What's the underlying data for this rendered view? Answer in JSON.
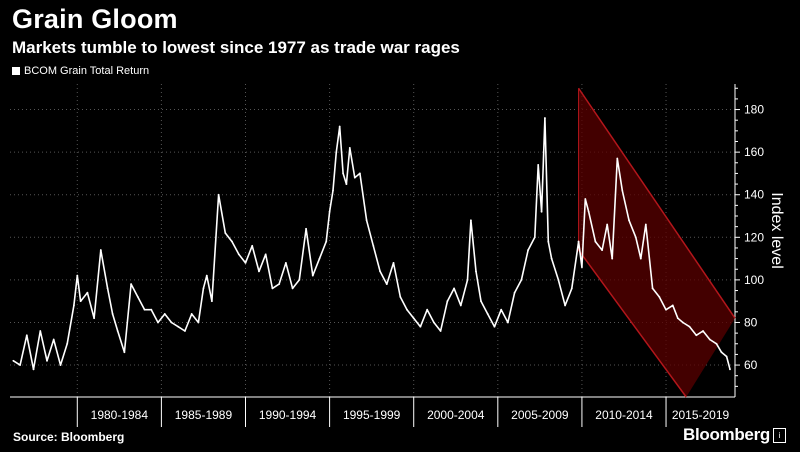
{
  "header": {
    "title": "Grain Gloom",
    "subtitle": "Markets tumble to lowest since 1977 as trade war rages"
  },
  "footer": {
    "source": "Source: Bloomberg",
    "brand": "Bloomberg",
    "brand_mark": "i"
  },
  "colors": {
    "background": "#000000",
    "series": "#ffffff",
    "channel_fill": "#5a0000",
    "channel_edge": "#b3161b",
    "grid": "#555555"
  },
  "chart_data": {
    "type": "line",
    "title": "Grain Gloom",
    "subtitle": "Markets tumble to lowest since 1977 as trade war rages",
    "ylabel": "Index level",
    "xlabel": "",
    "ylim": [
      45,
      192
    ],
    "xlim": [
      1976.8,
      2019.9
    ],
    "yticks": [
      60,
      80,
      100,
      120,
      140,
      160,
      180
    ],
    "x_categories": [
      "1980-1984",
      "1985-1989",
      "1990-1994",
      "1995-1999",
      "2000-2004",
      "2005-2009",
      "2010-2014",
      "2015-2019"
    ],
    "category_dividers": [
      1980.8,
      1985.8,
      1990.8,
      1995.8,
      2000.8,
      2005.8,
      2010.8,
      2015.8
    ],
    "grid": true,
    "legend_position": "top-left",
    "series": [
      {
        "name": "BCOM Grain Total Return",
        "x": [
          1977.0,
          1977.4,
          1977.8,
          1978.2,
          1978.6,
          1979.0,
          1979.4,
          1979.8,
          1980.2,
          1980.6,
          1980.8,
          1981.0,
          1981.4,
          1981.8,
          1982.2,
          1982.6,
          1982.9,
          1983.2,
          1983.6,
          1984.0,
          1984.4,
          1984.8,
          1985.2,
          1985.6,
          1986.0,
          1986.4,
          1986.8,
          1987.2,
          1987.6,
          1988.0,
          1988.3,
          1988.5,
          1988.8,
          1989.2,
          1989.6,
          1990.0,
          1990.4,
          1990.8,
          1991.2,
          1991.6,
          1992.0,
          1992.4,
          1992.8,
          1993.2,
          1993.6,
          1994.0,
          1994.4,
          1994.8,
          1995.2,
          1995.6,
          1995.8,
          1996.0,
          1996.2,
          1996.4,
          1996.6,
          1996.8,
          1997.0,
          1997.3,
          1997.6,
          1998.0,
          1998.4,
          1998.8,
          1999.2,
          1999.6,
          2000.0,
          2000.4,
          2000.8,
          2001.2,
          2001.6,
          2002.0,
          2002.4,
          2002.8,
          2003.2,
          2003.6,
          2004.0,
          2004.2,
          2004.5,
          2004.8,
          2005.2,
          2005.6,
          2006.0,
          2006.4,
          2006.8,
          2007.2,
          2007.6,
          2008.0,
          2008.2,
          2008.4,
          2008.6,
          2008.8,
          2009.0,
          2009.4,
          2009.8,
          2010.2,
          2010.6,
          2010.8,
          2011.0,
          2011.2,
          2011.6,
          2012.0,
          2012.3,
          2012.6,
          2012.9,
          2013.2,
          2013.6,
          2014.0,
          2014.3,
          2014.6,
          2015.0,
          2015.4,
          2015.8,
          2016.2,
          2016.5,
          2016.8,
          2017.2,
          2017.6,
          2018.0,
          2018.4,
          2018.8,
          2019.1,
          2019.4,
          2019.6
        ],
        "values": [
          62,
          60,
          74,
          58,
          76,
          62,
          72,
          60,
          70,
          88,
          102,
          90,
          94,
          82,
          114,
          96,
          84,
          76,
          66,
          98,
          92,
          86,
          86,
          80,
          84,
          80,
          78,
          76,
          84,
          80,
          96,
          102,
          90,
          140,
          122,
          118,
          112,
          108,
          116,
          104,
          112,
          96,
          98,
          108,
          96,
          100,
          124,
          102,
          110,
          118,
          132,
          142,
          160,
          172,
          150,
          145,
          162,
          148,
          150,
          128,
          116,
          104,
          98,
          108,
          92,
          86,
          82,
          78,
          86,
          80,
          76,
          90,
          96,
          88,
          100,
          128,
          104,
          90,
          84,
          78,
          86,
          80,
          94,
          100,
          114,
          120,
          154,
          132,
          176,
          118,
          110,
          100,
          88,
          96,
          118,
          106,
          138,
          132,
          118,
          114,
          126,
          110,
          157,
          142,
          128,
          120,
          110,
          126,
          96,
          92,
          86,
          88,
          82,
          80,
          78,
          74,
          76,
          72,
          70,
          66,
          64,
          58
        ]
      }
    ],
    "annotation": {
      "type": "downtrend-channel",
      "upper_start": [
        2010.6,
        190
      ],
      "upper_end": [
        2019.9,
        82
      ],
      "lower_start": [
        2010.6,
        114
      ],
      "lower_end": [
        2017.0,
        45
      ]
    }
  }
}
